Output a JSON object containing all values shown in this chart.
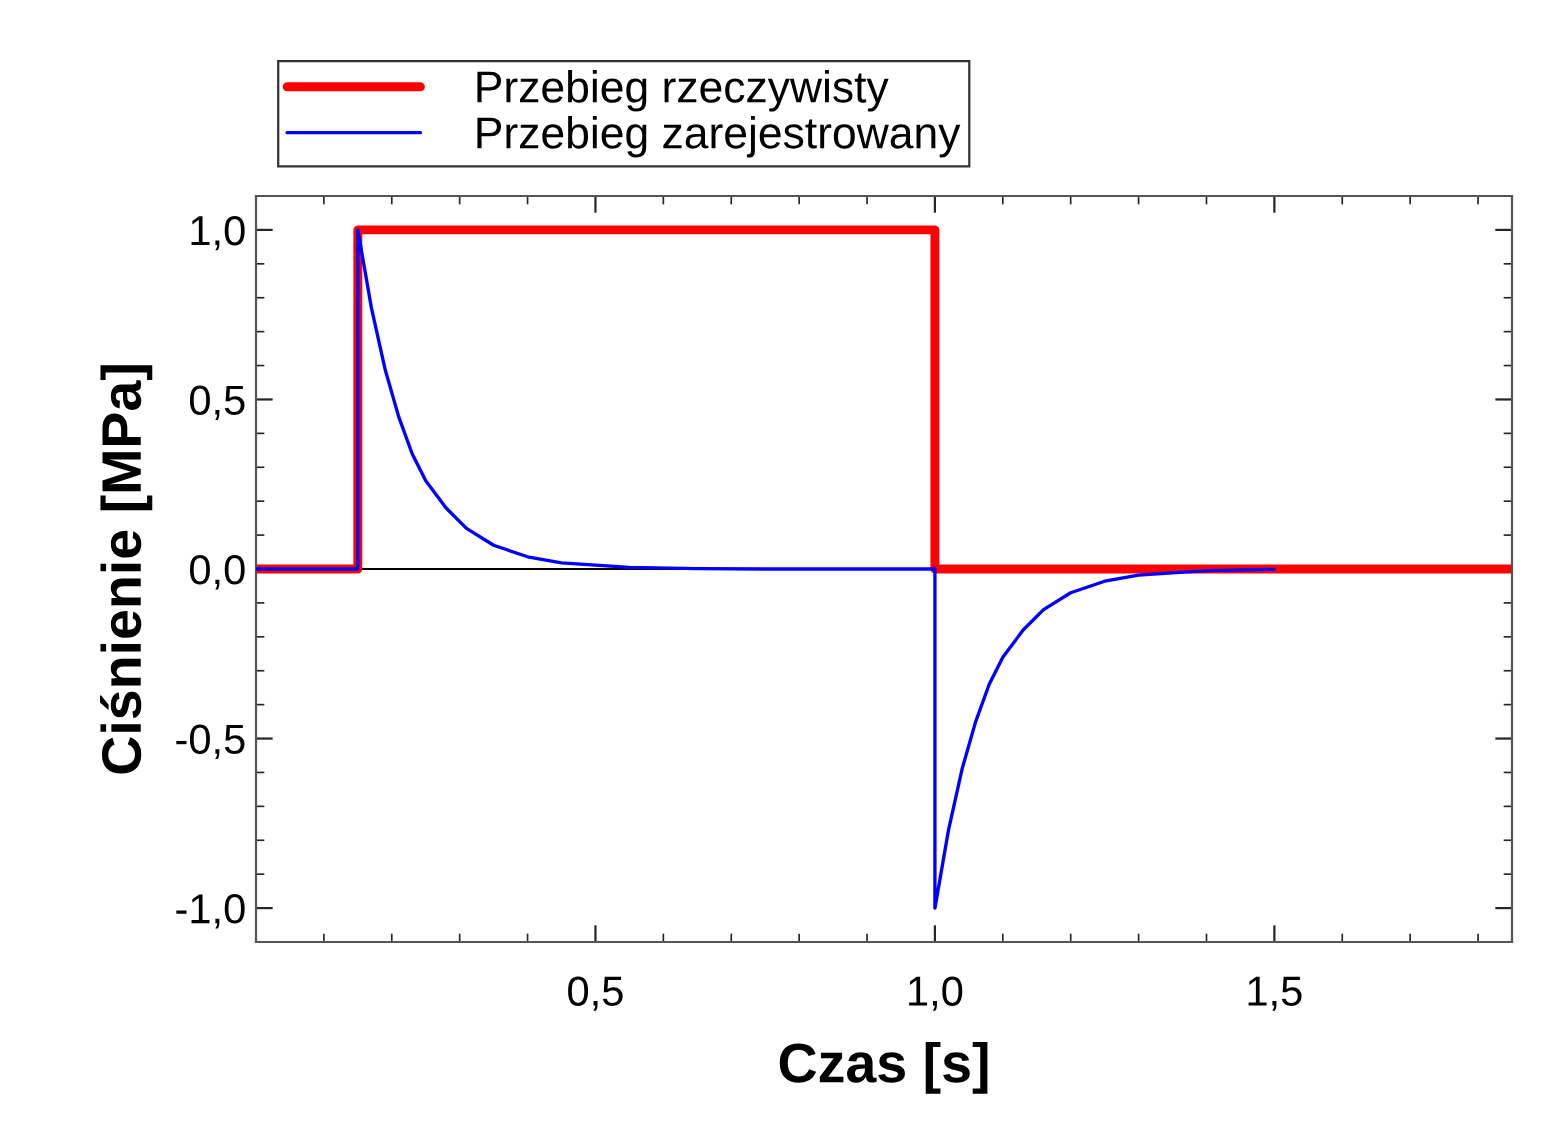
{
  "chart_data": {
    "type": "line",
    "xlabel": "Czas [s]",
    "ylabel": "Ciśnienie [MPa]",
    "xlim": [
      0,
      1.85
    ],
    "ylim": [
      -1.1,
      1.1
    ],
    "xticks": [
      {
        "value": 0.5,
        "label": "0,5"
      },
      {
        "value": 1.0,
        "label": "1,0"
      },
      {
        "value": 1.5,
        "label": "1,5"
      }
    ],
    "yticks": [
      {
        "value": -1.0,
        "label": "-1,0"
      },
      {
        "value": -0.5,
        "label": "-0,5"
      },
      {
        "value": 0.0,
        "label": "0,0"
      },
      {
        "value": 0.5,
        "label": "0,5"
      },
      {
        "value": 1.0,
        "label": "1,0"
      }
    ],
    "series": [
      {
        "name": "Przebieg rzeczywisty",
        "type": "step",
        "color": "#ff0000",
        "x": [
          0,
          0.15,
          1.0,
          1.85
        ],
        "values": [
          0,
          1,
          0,
          0
        ]
      },
      {
        "name": "Przebieg zarejestrowany",
        "color": "#0000ff",
        "x": [
          0,
          0.15,
          0.15,
          0.17,
          0.19,
          0.21,
          0.23,
          0.25,
          0.28,
          0.31,
          0.35,
          0.4,
          0.45,
          0.55,
          0.65,
          0.75,
          1.0,
          1.0,
          1.02,
          1.04,
          1.06,
          1.08,
          1.1,
          1.13,
          1.16,
          1.2,
          1.25,
          1.3,
          1.4,
          1.5
        ],
        "values": [
          0,
          0,
          1.0,
          0.77,
          0.59,
          0.45,
          0.34,
          0.26,
          0.18,
          0.12,
          0.07,
          0.036,
          0.018,
          0.005,
          0.001,
          0,
          0,
          -1.0,
          -0.77,
          -0.59,
          -0.45,
          -0.34,
          -0.26,
          -0.18,
          -0.12,
          -0.07,
          -0.036,
          -0.018,
          -0.005,
          -0.001
        ]
      }
    ],
    "ref_lines": [
      {
        "axis": "y",
        "value": 0,
        "color": "#000000"
      }
    ],
    "legend": "top left",
    "grid": false
  }
}
